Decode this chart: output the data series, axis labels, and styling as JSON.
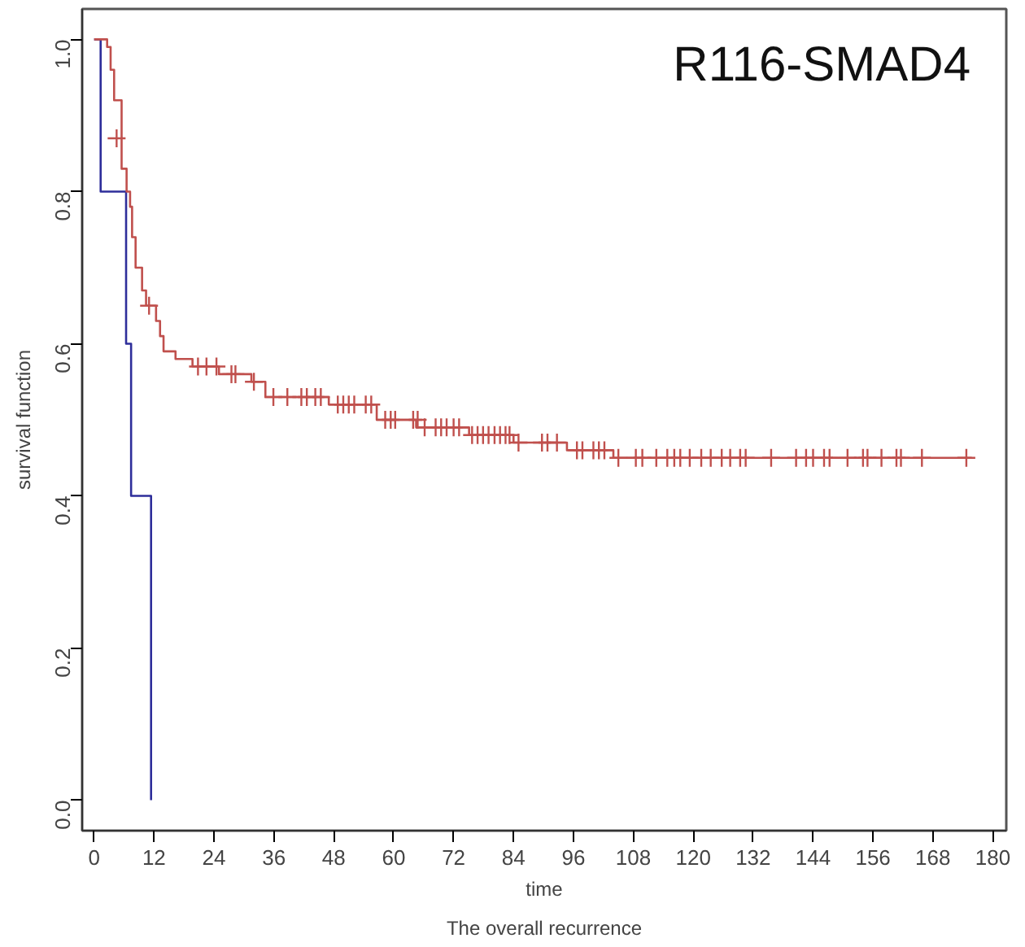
{
  "chart_data": {
    "type": "step",
    "title": "R116-SMAD4",
    "xlabel": "time",
    "ylabel": "survival function",
    "annotations": [
      "The overall recurrence"
    ],
    "xlim": [
      -2.4,
      182.7
    ],
    "ylim": [
      -0.04,
      1.04
    ],
    "xticks": [
      0,
      12,
      24,
      36,
      48,
      60,
      72,
      84,
      96,
      108,
      120,
      132,
      144,
      156,
      168,
      180
    ],
    "yticks": [
      {
        "value": 0,
        "label": "0.0"
      },
      {
        "value": 0.2,
        "label": "0.2"
      },
      {
        "value": 0.4,
        "label": "0.4"
      },
      {
        "value": 0.6,
        "label": "0.6"
      },
      {
        "value": 0.8,
        "label": "0.8"
      },
      {
        "value": 1,
        "label": "1.0"
      }
    ],
    "grid": false,
    "line_style": "solid",
    "series": [
      {
        "color": "#2e2e9a",
        "x": [
          0,
          1.3,
          6.4,
          7.4,
          11.4
        ],
        "values": [
          1.0,
          0.8,
          0.6,
          0.4,
          0.0
        ]
      },
      {
        "color": "#c0504d",
        "x": [
          0,
          2.6,
          3.3,
          4.0,
          5.5,
          6.5,
          7.2,
          7.6,
          8.3,
          9.6,
          10.4,
          12.4,
          13.2,
          13.9,
          15.2,
          16.3,
          19.7,
          25,
          31.5,
          34.3,
          44.3,
          47,
          56.6,
          64.5,
          75.1,
          84,
          94.7,
          104,
          175.8
        ],
        "values": [
          1.0,
          0.99,
          0.96,
          0.92,
          0.83,
          0.8,
          0.78,
          0.74,
          0.7,
          0.67,
          0.65,
          0.63,
          0.61,
          0.59,
          0.59,
          0.58,
          0.57,
          0.56,
          0.55,
          0.53,
          0.53,
          0.52,
          0.5,
          0.49,
          0.48,
          0.47,
          0.46,
          0.45,
          0.45
        ]
      },
      {
        "type": "scatter",
        "marker": "cross",
        "color": "#c0504d",
        "x": [
          4.5,
          11.0,
          20.8,
          22.5,
          24.5,
          27.5,
          28.3,
          32.0,
          35.9,
          38.7,
          41.5,
          42.6,
          44.3,
          45.4,
          48.8,
          49.9,
          51.0,
          52.1,
          54.4,
          55.5,
          58.3,
          59.4,
          60.3,
          63.9,
          64.8,
          66.2,
          68.4,
          69.5,
          70.6,
          72.0,
          73.1,
          75.7,
          76.8,
          77.9,
          79.0,
          80.2,
          81.3,
          82.4,
          83.2,
          85.0,
          89.7,
          90.8,
          92.7,
          96.7,
          97.8,
          100.0,
          101.1,
          102.2,
          105.0,
          108.5,
          109.8,
          112.6,
          114.8,
          116.2,
          117.4,
          119.3,
          121.6,
          123.5,
          125.7,
          127.4,
          129.4,
          130.5,
          135.6,
          140.6,
          142.6,
          144.0,
          146.2,
          147.3,
          150.9,
          154.0,
          154.9,
          157.7,
          160.7,
          161.6,
          165.8,
          174.7
        ],
        "values": [
          0.87,
          0.65,
          0.57,
          0.57,
          0.57,
          0.56,
          0.56,
          0.55,
          0.53,
          0.53,
          0.53,
          0.53,
          0.53,
          0.53,
          0.52,
          0.52,
          0.52,
          0.52,
          0.52,
          0.52,
          0.5,
          0.5,
          0.5,
          0.5,
          0.5,
          0.49,
          0.49,
          0.49,
          0.49,
          0.49,
          0.49,
          0.48,
          0.48,
          0.48,
          0.48,
          0.48,
          0.48,
          0.48,
          0.48,
          0.47,
          0.47,
          0.47,
          0.47,
          0.46,
          0.46,
          0.46,
          0.46,
          0.46,
          0.45,
          0.45,
          0.45,
          0.45,
          0.45,
          0.45,
          0.45,
          0.45,
          0.45,
          0.45,
          0.45,
          0.45,
          0.45,
          0.45,
          0.45,
          0.45,
          0.45,
          0.45,
          0.45,
          0.45,
          0.45,
          0.45,
          0.45,
          0.45,
          0.45,
          0.45,
          0.45,
          0.45
        ]
      }
    ]
  }
}
